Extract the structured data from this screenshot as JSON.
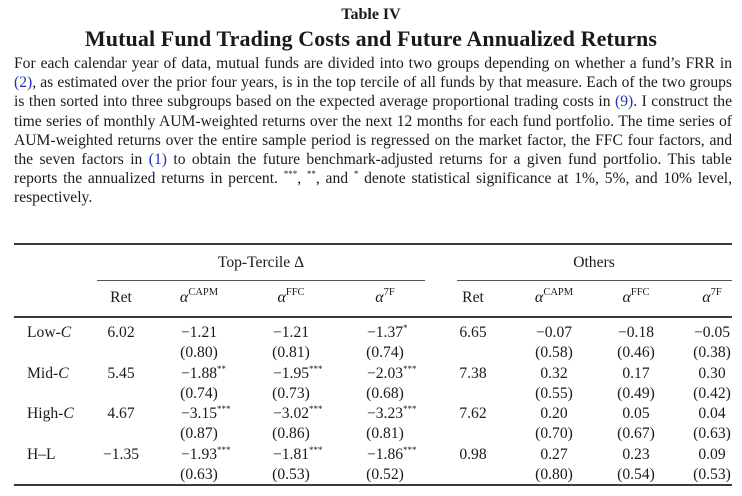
{
  "table_label": "Table IV",
  "title": "Mutual Fund Trading Costs and Future Annualized Returns",
  "caption": {
    "s1": "For each calendar year of data, mutual funds are divided into two groups depending on whether a fund’s FRR in ",
    "ref1": "(2)",
    "s2": ", as estimated over the prior four years, is in the top tercile of all funds by that measure. Each of the two groups is then sorted into three subgroups based on the expected average proportional trading costs in ",
    "ref2": "(9)",
    "s3": ". I construct the time series of monthly AUM-weighted returns over the next 12 months for each fund portfolio. The time series of AUM-weighted returns over the entire sample period is regressed on the market factor, the FFC four factors, and the seven factors in ",
    "ref3": "(1)",
    "s4": " to obtain the future benchmark-adjusted returns for a given fund portfolio. This table reports the annualized returns in percent. ",
    "star3": "***",
    "s5": ", ",
    "star2": "**",
    "s6": ", and ",
    "star1": "*",
    "s7": " denote statistical significance at 1%, 5%, and 10% level, respectively."
  },
  "table": {
    "groups": [
      "Top-Tercile Δ",
      "Others"
    ],
    "columns": [
      {
        "base": "Ret",
        "sup": ""
      },
      {
        "base": "α",
        "sup": "CAPM"
      },
      {
        "base": "α",
        "sup": "FFC"
      },
      {
        "base": "α",
        "sup": "7F"
      },
      {
        "base": "Ret",
        "sup": ""
      },
      {
        "base": "α",
        "sup": "CAPM"
      },
      {
        "base": "α",
        "sup": "FFC"
      },
      {
        "base": "α",
        "sup": "7F"
      }
    ],
    "rows": [
      {
        "label": "Low-",
        "label_sym": "C",
        "values": [
          "6.02",
          "−1.21",
          "−1.21",
          "−1.37",
          "6.65",
          "−0.07",
          "−0.18",
          "−0.05"
        ],
        "stars": [
          "",
          "",
          "",
          "*",
          "",
          "",
          "",
          ""
        ],
        "se": [
          "",
          "(0.80)",
          "(0.81)",
          "(0.74)",
          "",
          "(0.58)",
          "(0.46)",
          "(0.38)"
        ]
      },
      {
        "label": "Mid-",
        "label_sym": "C",
        "values": [
          "5.45",
          "−1.88",
          "−1.95",
          "−2.03",
          "7.38",
          "0.32",
          "0.17",
          "0.30"
        ],
        "stars": [
          "",
          "**",
          "***",
          "***",
          "",
          "",
          "",
          ""
        ],
        "se": [
          "",
          "(0.74)",
          "(0.73)",
          "(0.68)",
          "",
          "(0.55)",
          "(0.49)",
          "(0.42)"
        ]
      },
      {
        "label": "High-",
        "label_sym": "C",
        "values": [
          "4.67",
          "−3.15",
          "−3.02",
          "−3.23",
          "7.62",
          "0.20",
          "0.05",
          "0.04"
        ],
        "stars": [
          "",
          "***",
          "***",
          "***",
          "",
          "",
          "",
          ""
        ],
        "se": [
          "",
          "(0.87)",
          "(0.86)",
          "(0.81)",
          "",
          "(0.70)",
          "(0.67)",
          "(0.63)"
        ]
      },
      {
        "label": "H–L",
        "label_sym": "",
        "values": [
          "−1.35",
          "−1.93",
          "−1.81",
          "−1.86",
          "0.98",
          "0.27",
          "0.23",
          "0.09"
        ],
        "stars": [
          "",
          "***",
          "***",
          "***",
          "",
          "",
          "",
          ""
        ],
        "se": [
          "",
          "(0.63)",
          "(0.53)",
          "(0.52)",
          "",
          "(0.80)",
          "(0.54)",
          "(0.53)"
        ]
      }
    ]
  }
}
